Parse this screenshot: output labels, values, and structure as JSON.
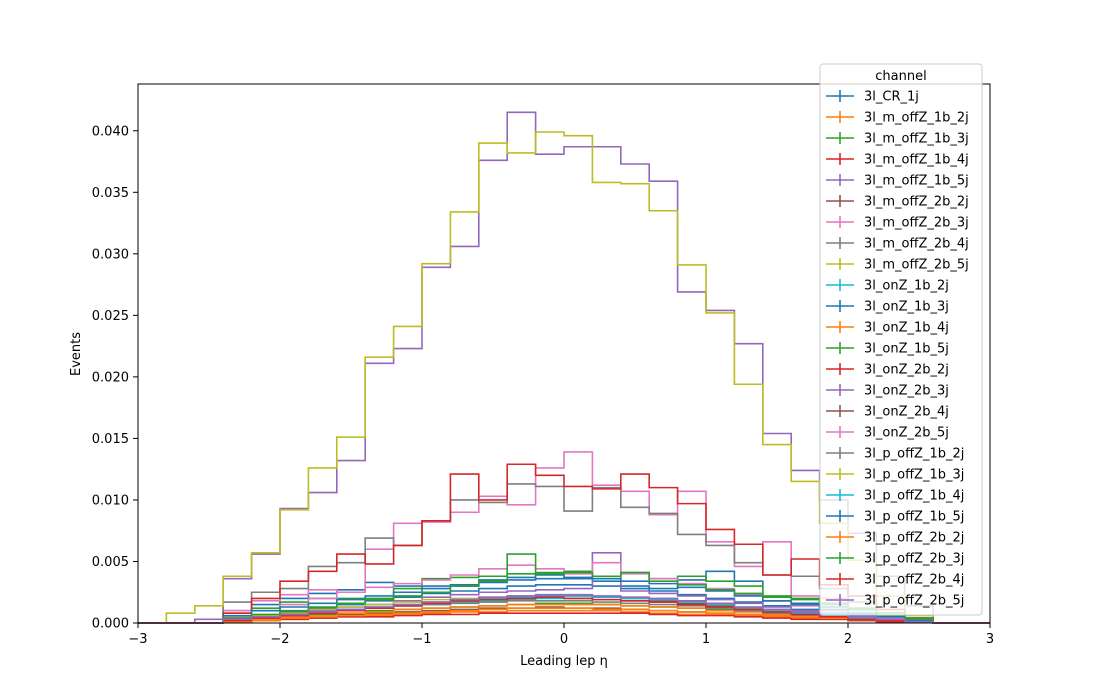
{
  "chart_data": {
    "type": "line",
    "title": "",
    "xlabel": "Leading lep η",
    "ylabel": "Events",
    "xlim": [
      -3,
      3
    ],
    "ylim": [
      0,
      0.0438
    ],
    "x_ticks": [
      {
        "value": -3,
        "label": "−3"
      },
      {
        "value": -2,
        "label": "−2"
      },
      {
        "value": -1,
        "label": "−1"
      },
      {
        "value": 0,
        "label": "0"
      },
      {
        "value": 1,
        "label": "1"
      },
      {
        "value": 2,
        "label": "2"
      },
      {
        "value": 3,
        "label": "3"
      }
    ],
    "y_ticks": [
      {
        "value": 0.0,
        "label": "0.000"
      },
      {
        "value": 0.005,
        "label": "0.005"
      },
      {
        "value": 0.01,
        "label": "0.010"
      },
      {
        "value": 0.015,
        "label": "0.015"
      },
      {
        "value": 0.02,
        "label": "0.020"
      },
      {
        "value": 0.025,
        "label": "0.025"
      },
      {
        "value": 0.03,
        "label": "0.030"
      },
      {
        "value": 0.035,
        "label": "0.035"
      },
      {
        "value": 0.04,
        "label": "0.040"
      }
    ],
    "grid": false,
    "legend": {
      "title": "channel",
      "placement": "top-right"
    },
    "bin_edges": [
      -3.0,
      -2.8,
      -2.6,
      -2.4,
      -2.2,
      -2.0,
      -1.8,
      -1.6,
      -1.4,
      -1.2,
      -1.0,
      -0.8,
      -0.6,
      -0.4,
      -0.2,
      0.0,
      0.2,
      0.4,
      0.6,
      0.8,
      1.0,
      1.2,
      1.4,
      1.6,
      1.8,
      2.0,
      2.2,
      2.4,
      2.6,
      2.8,
      3.0
    ],
    "series": [
      {
        "name": "3l_CR_1j",
        "color": "#1f77b4",
        "values": [
          0,
          0,
          0,
          0.001,
          0.0015,
          0.002,
          0.0024,
          0.0027,
          0.0033,
          0.003,
          0.003,
          0.003,
          0.0035,
          0.0037,
          0.0039,
          0.0036,
          0.0034,
          0.003,
          0.0028,
          0.0035,
          0.0042,
          0.0034,
          0.0018,
          0.0016,
          0.0013,
          0.0011,
          0.0008,
          0.0004,
          0,
          0
        ]
      },
      {
        "name": "3l_m_offZ_1b_2j",
        "color": "#ff7f0e",
        "values": [
          0,
          0,
          0,
          0.0001,
          0.0002,
          0.0003,
          0.0004,
          0.0005,
          0.0006,
          0.0007,
          0.0008,
          0.0009,
          0.0009,
          0.001,
          0.001,
          0.001,
          0.001,
          0.0009,
          0.0008,
          0.0007,
          0.0007,
          0.0006,
          0.0005,
          0.0004,
          0.0003,
          0.0002,
          0.0002,
          0.0001,
          0,
          0
        ]
      },
      {
        "name": "3l_m_offZ_1b_3j",
        "color": "#2ca02c",
        "values": [
          0,
          0,
          0,
          0.0002,
          0.0003,
          0.0005,
          0.0007,
          0.0008,
          0.001,
          0.0011,
          0.0012,
          0.0013,
          0.0014,
          0.0015,
          0.0016,
          0.0016,
          0.0015,
          0.0014,
          0.0013,
          0.0012,
          0.0011,
          0.001,
          0.0009,
          0.0007,
          0.0006,
          0.0004,
          0.0003,
          0.0002,
          0,
          0
        ]
      },
      {
        "name": "3l_m_offZ_1b_4j",
        "color": "#d62728",
        "values": [
          0,
          0,
          0,
          0.0001,
          0.0002,
          0.0003,
          0.0004,
          0.0005,
          0.0005,
          0.0006,
          0.0007,
          0.0007,
          0.0008,
          0.0008,
          0.0008,
          0.0008,
          0.0008,
          0.0008,
          0.0007,
          0.0006,
          0.0006,
          0.0005,
          0.0004,
          0.0003,
          0.0003,
          0.0002,
          0.0001,
          0.0001,
          0,
          0
        ]
      },
      {
        "name": "3l_m_offZ_1b_5j",
        "color": "#9467bd",
        "values": [
          0,
          0,
          0.0003,
          0.0036,
          0.0056,
          0.0093,
          0.0106,
          0.0132,
          0.0211,
          0.0223,
          0.0289,
          0.0306,
          0.0376,
          0.0415,
          0.0381,
          0.0387,
          0.0387,
          0.0373,
          0.0359,
          0.0269,
          0.0254,
          0.0227,
          0.0154,
          0.0124,
          0.01,
          0.0073,
          0.0038,
          0.0014,
          0,
          0
        ]
      },
      {
        "name": "3l_m_offZ_2b_2j",
        "color": "#8c564b",
        "values": [
          0,
          0,
          0,
          0.0002,
          0.0003,
          0.0004,
          0.0006,
          0.0007,
          0.0008,
          0.0009,
          0.001,
          0.0011,
          0.0012,
          0.0012,
          0.0013,
          0.0012,
          0.0012,
          0.0011,
          0.001,
          0.0009,
          0.0008,
          0.0007,
          0.0006,
          0.0005,
          0.0004,
          0.0003,
          0.0002,
          0.0001,
          0,
          0
        ]
      },
      {
        "name": "3l_m_offZ_2b_3j",
        "color": "#e377c2",
        "values": [
          0,
          0,
          0,
          0.001,
          0.0018,
          0.0023,
          0.0027,
          0.0025,
          0.006,
          0.0081,
          0.0082,
          0.009,
          0.0103,
          0.0096,
          0.0126,
          0.0139,
          0.0112,
          0.0107,
          0.0088,
          0.0107,
          0.0066,
          0.0046,
          0.0066,
          0.0022,
          0.002,
          0.0012,
          0.0005,
          0.0003,
          0,
          0
        ]
      },
      {
        "name": "3l_m_offZ_2b_4j",
        "color": "#7f7f7f",
        "values": [
          0,
          0,
          0,
          0.0017,
          0.0025,
          0.0028,
          0.0046,
          0.0049,
          0.0069,
          0.0063,
          0.0083,
          0.01,
          0.0098,
          0.0113,
          0.0111,
          0.0091,
          0.011,
          0.0094,
          0.0089,
          0.0072,
          0.0063,
          0.0049,
          0.0039,
          0.0038,
          0.0028,
          0.0017,
          0.0008,
          0.0003,
          0,
          0
        ]
      },
      {
        "name": "3l_m_offZ_2b_5j",
        "color": "#bcbd22",
        "values": [
          0,
          0.0008,
          0.0014,
          0.0038,
          0.0057,
          0.0092,
          0.0126,
          0.0151,
          0.0216,
          0.0241,
          0.0292,
          0.0334,
          0.039,
          0.0382,
          0.0399,
          0.0396,
          0.0358,
          0.0357,
          0.0335,
          0.0291,
          0.0252,
          0.0194,
          0.0145,
          0.0115,
          0.0081,
          0.0051,
          0.0022,
          0.0006,
          0,
          0
        ]
      },
      {
        "name": "3l_onZ_1b_2j",
        "color": "#17becf",
        "values": [
          0,
          0,
          0,
          0.0002,
          0.0004,
          0.0006,
          0.0008,
          0.001,
          0.0012,
          0.0014,
          0.0015,
          0.0017,
          0.0018,
          0.0019,
          0.002,
          0.002,
          0.0019,
          0.0018,
          0.0017,
          0.0015,
          0.0013,
          0.0011,
          0.0009,
          0.0007,
          0.0005,
          0.0004,
          0.0002,
          0.0001,
          0,
          0
        ]
      },
      {
        "name": "3l_onZ_1b_3j",
        "color": "#1f77b4",
        "values": [
          0,
          0,
          0,
          0.0004,
          0.0006,
          0.0009,
          0.0012,
          0.0015,
          0.0018,
          0.0021,
          0.0024,
          0.0026,
          0.0028,
          0.003,
          0.0031,
          0.0031,
          0.003,
          0.0028,
          0.0026,
          0.0023,
          0.002,
          0.0017,
          0.0014,
          0.0011,
          0.0008,
          0.0006,
          0.0004,
          0.0002,
          0,
          0
        ]
      },
      {
        "name": "3l_onZ_1b_4j",
        "color": "#ff7f0e",
        "values": [
          0,
          0,
          0,
          0.0002,
          0.0003,
          0.0005,
          0.0006,
          0.0008,
          0.0009,
          0.0011,
          0.0012,
          0.0013,
          0.0014,
          0.0015,
          0.0015,
          0.0015,
          0.0015,
          0.0014,
          0.0013,
          0.0012,
          0.001,
          0.0009,
          0.0007,
          0.0005,
          0.0004,
          0.0003,
          0.0002,
          0.0001,
          0,
          0
        ]
      },
      {
        "name": "3l_onZ_1b_5j",
        "color": "#2ca02c",
        "values": [
          0,
          0,
          0,
          0.0008,
          0.0012,
          0.0017,
          0.002,
          0.002,
          0.002,
          0.0028,
          0.0036,
          0.0037,
          0.0038,
          0.004,
          0.0041,
          0.0042,
          0.0036,
          0.0041,
          0.0036,
          0.0038,
          0.0034,
          0.003,
          0.0021,
          0.002,
          0.0015,
          0.0011,
          0.0006,
          0.0003,
          0,
          0
        ]
      },
      {
        "name": "3l_onZ_2b_2j",
        "color": "#d62728",
        "values": [
          0,
          0,
          0,
          0.0008,
          0.002,
          0.0034,
          0.0042,
          0.0056,
          0.0048,
          0.0063,
          0.0083,
          0.0121,
          0.01,
          0.0129,
          0.012,
          0.0111,
          0.0109,
          0.0121,
          0.011,
          0.0097,
          0.0076,
          0.0064,
          0.0039,
          0.0052,
          0.0031,
          0.0022,
          0.0011,
          0.0004,
          0,
          0
        ]
      },
      {
        "name": "3l_onZ_2b_3j",
        "color": "#9467bd",
        "values": [
          0,
          0,
          0,
          0.0003,
          0.0005,
          0.0008,
          0.001,
          0.0013,
          0.0015,
          0.0018,
          0.0021,
          0.0023,
          0.0025,
          0.0026,
          0.0027,
          0.0028,
          0.0057,
          0.0026,
          0.0024,
          0.0022,
          0.0019,
          0.0016,
          0.0013,
          0.001,
          0.0007,
          0.0005,
          0.0003,
          0.0001,
          0,
          0
        ]
      },
      {
        "name": "3l_onZ_2b_4j",
        "color": "#8c564b",
        "values": [
          0,
          0,
          0,
          0.0003,
          0.0004,
          0.0006,
          0.0008,
          0.001,
          0.0012,
          0.0014,
          0.0016,
          0.0018,
          0.002,
          0.0021,
          0.0022,
          0.0022,
          0.0021,
          0.002,
          0.0018,
          0.0016,
          0.0014,
          0.0012,
          0.001,
          0.0008,
          0.0006,
          0.0004,
          0.0002,
          0.0001,
          0,
          0
        ]
      },
      {
        "name": "3l_onZ_2b_5j",
        "color": "#e377c2",
        "values": [
          0,
          0,
          0,
          0.0005,
          0.001,
          0.0015,
          0.002,
          0.0025,
          0.0029,
          0.0032,
          0.0035,
          0.0039,
          0.0044,
          0.0047,
          0.0044,
          0.004,
          0.0049,
          0.004,
          0.0036,
          0.0032,
          0.0028,
          0.0023,
          0.0018,
          0.0014,
          0.001,
          0.0007,
          0.0004,
          0.0002,
          0,
          0
        ]
      },
      {
        "name": "3l_p_offZ_1b_2j",
        "color": "#7f7f7f",
        "values": [
          0,
          0,
          0,
          0.0003,
          0.0005,
          0.0007,
          0.0009,
          0.0011,
          0.0012,
          0.0014,
          0.0015,
          0.0016,
          0.0017,
          0.0018,
          0.0018,
          0.0018,
          0.0017,
          0.0016,
          0.0015,
          0.0014,
          0.0012,
          0.001,
          0.0008,
          0.0006,
          0.0005,
          0.0003,
          0.0002,
          0.0001,
          0,
          0
        ]
      },
      {
        "name": "3l_p_offZ_1b_3j",
        "color": "#bcbd22",
        "values": [
          0,
          0,
          0,
          0.0004,
          0.0006,
          0.0008,
          0.0011,
          0.0013,
          0.0015,
          0.0017,
          0.0019,
          0.002,
          0.0021,
          0.0022,
          0.0022,
          0.0022,
          0.0021,
          0.002,
          0.0019,
          0.0017,
          0.0015,
          0.0013,
          0.0011,
          0.0009,
          0.0007,
          0.0005,
          0.0003,
          0.0001,
          0,
          0
        ]
      },
      {
        "name": "3l_p_offZ_1b_4j",
        "color": "#17becf",
        "values": [
          0,
          0,
          0,
          0.0003,
          0.0005,
          0.0007,
          0.0009,
          0.0011,
          0.0013,
          0.0015,
          0.0017,
          0.0019,
          0.002,
          0.0021,
          0.0022,
          0.0022,
          0.0021,
          0.002,
          0.0019,
          0.0017,
          0.0015,
          0.0012,
          0.001,
          0.0008,
          0.0006,
          0.0004,
          0.0002,
          0.0001,
          0,
          0
        ]
      },
      {
        "name": "3l_p_offZ_1b_5j",
        "color": "#1f77b4",
        "values": [
          0,
          0,
          0,
          0.0006,
          0.001,
          0.0013,
          0.0016,
          0.0019,
          0.0022,
          0.0025,
          0.0028,
          0.0031,
          0.0033,
          0.0035,
          0.0036,
          0.0037,
          0.0036,
          0.0034,
          0.0032,
          0.0029,
          0.0026,
          0.0022,
          0.0018,
          0.0015,
          0.0011,
          0.0008,
          0.0005,
          0.0002,
          0,
          0
        ]
      },
      {
        "name": "3l_p_offZ_2b_2j",
        "color": "#ff7f0e",
        "values": [
          0,
          0,
          0,
          0.0001,
          0.0002,
          0.0004,
          0.0005,
          0.0006,
          0.0007,
          0.0008,
          0.0009,
          0.001,
          0.0011,
          0.0012,
          0.0012,
          0.0012,
          0.0011,
          0.0011,
          0.001,
          0.0009,
          0.0008,
          0.0007,
          0.0006,
          0.0005,
          0.0004,
          0.0003,
          0.0002,
          0.0001,
          0,
          0
        ]
      },
      {
        "name": "3l_p_offZ_2b_3j",
        "color": "#2ca02c",
        "values": [
          0,
          0,
          0,
          0.0004,
          0.0007,
          0.001,
          0.0013,
          0.0016,
          0.0019,
          0.0022,
          0.0025,
          0.003,
          0.0034,
          0.0056,
          0.004,
          0.0041,
          0.0038,
          0.0041,
          0.0034,
          0.0031,
          0.0027,
          0.0024,
          0.0022,
          0.0019,
          0.0016,
          0.0012,
          0.0008,
          0.0004,
          0,
          0
        ]
      },
      {
        "name": "3l_p_offZ_2b_4j",
        "color": "#d62728",
        "values": [
          0,
          0,
          0,
          0.0002,
          0.0004,
          0.0006,
          0.0008,
          0.001,
          0.0012,
          0.0014,
          0.0016,
          0.0018,
          0.0019,
          0.002,
          0.0021,
          0.002,
          0.0019,
          0.0018,
          0.0017,
          0.0015,
          0.0013,
          0.0011,
          0.0009,
          0.0007,
          0.0005,
          0.0003,
          0.0002,
          0.0001,
          0,
          0
        ]
      },
      {
        "name": "3l_p_offZ_2b_5j",
        "color": "#9467bd",
        "values": [
          0,
          0,
          0,
          0.0003,
          0.0005,
          0.0007,
          0.0009,
          0.0011,
          0.0013,
          0.0015,
          0.0017,
          0.0019,
          0.0021,
          0.0022,
          0.0023,
          0.0023,
          0.0022,
          0.0021,
          0.002,
          0.0018,
          0.0016,
          0.0013,
          0.0011,
          0.0009,
          0.0007,
          0.0005,
          0.0003,
          0.0001,
          0,
          0
        ]
      }
    ]
  }
}
